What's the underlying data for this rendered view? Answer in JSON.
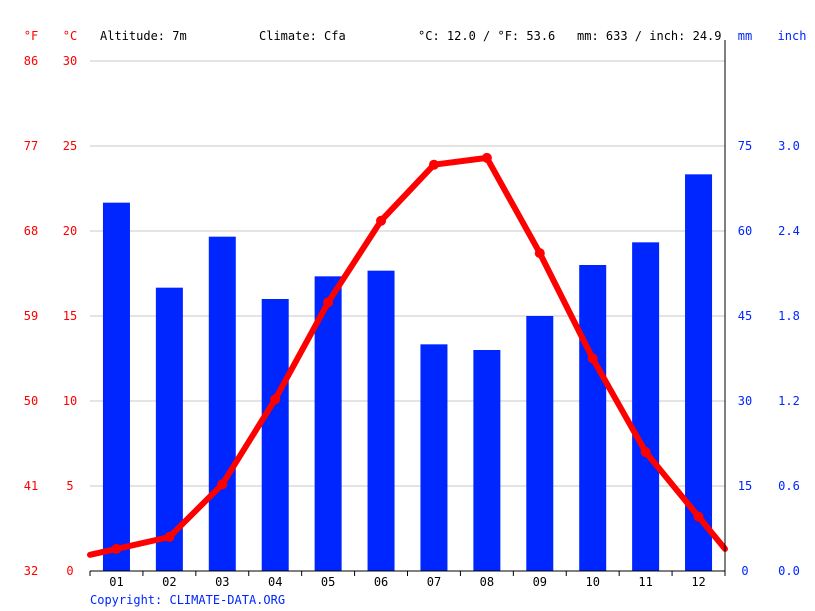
{
  "header": {
    "unit_f": "°F",
    "unit_c": "°C",
    "altitude": "Altitude: 7m",
    "climate": "Climate: Cfa",
    "temp_summary": "°C: 12.0 / °F: 53.6",
    "precip_summary": "mm: 633 / inch: 24.9",
    "unit_mm": "mm",
    "unit_inch": "inch"
  },
  "copyright": "Copyright: CLIMATE-DATA.ORG",
  "colors": {
    "temperature": "#ff0000",
    "precipitation": "#0026ff",
    "grid": "#c8c8c8",
    "axis": "#000000"
  },
  "chart_data": {
    "type": "bar",
    "categories": [
      "01",
      "02",
      "03",
      "04",
      "05",
      "06",
      "07",
      "08",
      "09",
      "10",
      "11",
      "12"
    ],
    "series": [
      {
        "type": "bar",
        "axis": "right",
        "values": [
          65,
          50,
          59,
          48,
          52,
          53,
          40,
          39,
          45,
          54,
          58,
          70
        ]
      },
      {
        "type": "line",
        "axis": "left",
        "values": [
          1.3,
          2.0,
          5.1,
          10.1,
          15.8,
          20.6,
          23.9,
          24.3,
          18.7,
          12.5,
          7.0,
          3.2
        ]
      }
    ],
    "left_axis": {
      "ylim": [
        0,
        30
      ],
      "ticks_c": [
        "0",
        "5",
        "10",
        "15",
        "20",
        "25",
        "30"
      ],
      "ticks_f": [
        "32",
        "41",
        "50",
        "59",
        "68",
        "77",
        "86"
      ]
    },
    "right_axis": {
      "ylim": [
        0,
        90
      ],
      "ticks_mm": [
        "0",
        "15",
        "30",
        "45",
        "60",
        "75"
      ],
      "ticks_inch": [
        "0.0",
        "0.6",
        "1.2",
        "1.8",
        "2.4",
        "3.0"
      ]
    },
    "grid": true
  }
}
